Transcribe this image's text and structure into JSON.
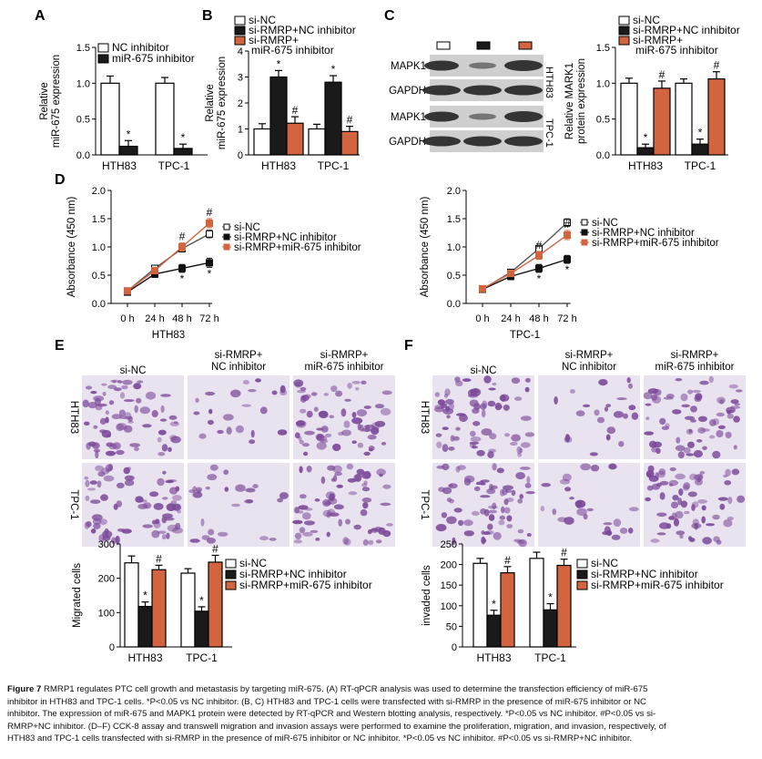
{
  "colors": {
    "white_bar": "#ffffff",
    "black_bar": "#1a1a1a",
    "orange_bar": "#d2653f",
    "line_black": "#111111",
    "line_gray": "#555555",
    "line_orange": "#d2653f",
    "blot_bg": "#cfcfcf",
    "blot_band": "#2b2b2b",
    "stain_bg": "#e9e3ef",
    "stain_cell": "#7c4a9a"
  },
  "panels": {
    "A": {
      "letter": "A",
      "ylabel1": "Relative",
      "ylabel2": "miR-675 expression",
      "yticks": [
        "0.0",
        "0.5",
        "1.0",
        "1.5"
      ],
      "legend": [
        "NC inhibitor",
        "miR-675 inhibitor"
      ],
      "xcats": [
        "HTH83",
        "TPC-1"
      ]
    },
    "B": {
      "letter": "B",
      "ylabel1": "Relative",
      "ylabel2": "miR-675 expression",
      "yticks": [
        "0",
        "1",
        "2",
        "3",
        "4"
      ],
      "legend": [
        "si-NC",
        "si-RMRP+NC inhibitor",
        "si-RMRP+",
        "miR-675 inhibitor"
      ],
      "xcats": [
        "HTH83",
        "TPC-1"
      ]
    },
    "C": {
      "letter": "C",
      "blot_labels": [
        "MAPK1",
        "GAPDH",
        "MAPK1",
        "GAPDH"
      ],
      "cell_labels": [
        "HTH83",
        "TPC-1"
      ],
      "ylabel1": "Relative MARK1",
      "ylabel2": "protein expression",
      "yticks": [
        "0.0",
        "0.5",
        "1.0",
        "1.5"
      ],
      "legend": [
        "si-NC",
        "si-RMRP+NC inhibitor",
        "si-RMRP+",
        "miR-675 inhibitor"
      ],
      "xcats": [
        "HTH83",
        "TPC-1"
      ]
    },
    "D": {
      "letter": "D",
      "ylabel": "Absorbance (450 nm)",
      "yticks": [
        "0.0",
        "0.5",
        "1.0",
        "1.5",
        "2.0"
      ],
      "xticks": [
        "0 h",
        "24 h",
        "48 h",
        "72 h"
      ],
      "xlabel_left": "HTH83",
      "xlabel_right": "TPC-1",
      "legend": [
        "si-NC",
        "si-RMRP+NC inhibitor",
        "si-RMRP+miR-675 inhibitor"
      ]
    },
    "E": {
      "letter": "E",
      "col_headers": [
        "si-NC",
        "si-RMRP+",
        "NC inhibitor",
        "si-RMRP+",
        "miR-675 inhibitor"
      ],
      "row_labels": [
        "HTH83",
        "TPC-1"
      ],
      "ylabel": "Migrated cells",
      "yticks": [
        "0",
        "100",
        "200",
        "300"
      ],
      "legend": [
        "si-NC",
        "si-RMRP+NC inhibitor",
        "si-RMRP+miR-675 inhibitor"
      ],
      "xcats": [
        "HTH83",
        "TPC-1"
      ]
    },
    "F": {
      "letter": "F",
      "col_headers": [
        "si-NC",
        "si-RMRP+",
        "NC inhibitor",
        "si-RMRP+",
        "miR-675 inhibitor"
      ],
      "row_labels": [
        "HTH83",
        "TPC-1"
      ],
      "ylabel": "invaded cells",
      "yticks": [
        "0",
        "50",
        "100",
        "150",
        "200",
        "250"
      ],
      "legend": [
        "si-NC",
        "si-RMRP+NC inhibitor",
        "si-RMRP+miR-675 inhibitor"
      ],
      "xcats": [
        "HTH83",
        "TPC-1"
      ]
    }
  },
  "chart_data": [
    {
      "panel": "A",
      "type": "bar",
      "categories": [
        "HTH83",
        "TPC-1"
      ],
      "ylabel": "Relative miR-675 expression",
      "ylim": [
        0,
        1.5
      ],
      "series": [
        {
          "name": "NC inhibitor",
          "values": [
            1.0,
            1.0
          ],
          "errors": [
            0.1,
            0.08
          ]
        },
        {
          "name": "miR-675 inhibitor",
          "values": [
            0.12,
            0.09
          ],
          "errors": [
            0.08,
            0.06
          ]
        }
      ],
      "annotations": [
        "*",
        "*"
      ]
    },
    {
      "panel": "B",
      "type": "bar",
      "categories": [
        "HTH83",
        "TPC-1"
      ],
      "ylabel": "Relative miR-675 expression",
      "ylim": [
        0,
        4
      ],
      "series": [
        {
          "name": "si-NC",
          "values": [
            1.0,
            1.0
          ],
          "errors": [
            0.2,
            0.18
          ]
        },
        {
          "name": "si-RMRP+NC inhibitor",
          "values": [
            3.0,
            2.8
          ],
          "errors": [
            0.25,
            0.25
          ]
        },
        {
          "name": "si-RMRP+ miR-675 inhibitor",
          "values": [
            1.22,
            0.9
          ],
          "errors": [
            0.25,
            0.2
          ]
        }
      ],
      "annotations": [
        "*",
        "#",
        "*",
        "#"
      ]
    },
    {
      "panel": "C",
      "type": "bar",
      "categories": [
        "HTH83",
        "TPC-1"
      ],
      "ylabel": "Relative MARK1 protein expression",
      "ylim": [
        0,
        1.5
      ],
      "series": [
        {
          "name": "si-NC",
          "values": [
            1.0,
            1.0
          ],
          "errors": [
            0.07,
            0.06
          ]
        },
        {
          "name": "si-RMRP+NC inhibitor",
          "values": [
            0.1,
            0.15
          ],
          "errors": [
            0.05,
            0.07
          ]
        },
        {
          "name": "si-RMRP+ miR-675 inhibitor",
          "values": [
            0.93,
            1.06
          ],
          "errors": [
            0.1,
            0.1
          ]
        }
      ],
      "annotations": [
        "*",
        "#",
        "*",
        "#"
      ]
    },
    {
      "panel": "D-HTH83",
      "type": "line",
      "x": [
        "0 h",
        "24 h",
        "48 h",
        "72 h"
      ],
      "ylabel": "Absorbance (450 nm)",
      "xlabel": "HTH83",
      "ylim": [
        0,
        2.0
      ],
      "series": [
        {
          "name": "si-NC",
          "values": [
            0.22,
            0.62,
            0.97,
            1.23
          ],
          "errors": [
            0.04,
            0.04,
            0.06,
            0.07
          ]
        },
        {
          "name": "si-RMRP+NC inhibitor",
          "values": [
            0.2,
            0.52,
            0.62,
            0.72
          ],
          "errors": [
            0.04,
            0.06,
            0.07,
            0.08
          ]
        },
        {
          "name": "si-RMRP+miR-675 inhibitor",
          "values": [
            0.22,
            0.58,
            1.0,
            1.42
          ],
          "errors": [
            0.04,
            0.05,
            0.07,
            0.08
          ]
        }
      ],
      "annotations": [
        "#",
        "*",
        "#",
        "*"
      ]
    },
    {
      "panel": "D-TPC-1",
      "type": "line",
      "x": [
        "0 h",
        "24 h",
        "48 h",
        "72 h"
      ],
      "ylabel": "Absorbance (450 nm)",
      "xlabel": "TPC-1",
      "ylim": [
        0,
        2.0
      ],
      "series": [
        {
          "name": "si-NC",
          "values": [
            0.25,
            0.55,
            0.97,
            1.43
          ],
          "errors": [
            0.04,
            0.05,
            0.06,
            0.07
          ]
        },
        {
          "name": "si-RMRP+NC inhibitor",
          "values": [
            0.25,
            0.48,
            0.62,
            0.78
          ],
          "errors": [
            0.04,
            0.06,
            0.07,
            0.07
          ]
        },
        {
          "name": "si-RMRP+miR-675 inhibitor",
          "values": [
            0.26,
            0.53,
            0.85,
            1.21
          ],
          "errors": [
            0.04,
            0.05,
            0.07,
            0.08
          ]
        }
      ],
      "annotations": [
        "#",
        "*",
        "#",
        "*"
      ]
    },
    {
      "panel": "E",
      "type": "bar",
      "categories": [
        "HTH83",
        "TPC-1"
      ],
      "ylabel": "Migrated cells",
      "ylim": [
        0,
        300
      ],
      "series": [
        {
          "name": "si-NC",
          "values": [
            245,
            215
          ],
          "errors": [
            20,
            13
          ]
        },
        {
          "name": "si-RMRP+NC inhibitor",
          "values": [
            118,
            104
          ],
          "errors": [
            13,
            13
          ]
        },
        {
          "name": "si-RMRP+miR-675 inhibitor",
          "values": [
            225,
            247
          ],
          "errors": [
            13,
            20
          ]
        }
      ],
      "annotations": [
        "*",
        "#",
        "*",
        "#"
      ]
    },
    {
      "panel": "F",
      "type": "bar",
      "categories": [
        "HTH83",
        "TPC-1"
      ],
      "ylabel": "invaded cells",
      "ylim": [
        0,
        250
      ],
      "series": [
        {
          "name": "si-NC",
          "values": [
            203,
            215
          ],
          "errors": [
            12,
            15
          ]
        },
        {
          "name": "si-RMRP+NC inhibitor",
          "values": [
            77,
            90
          ],
          "errors": [
            12,
            15
          ]
        },
        {
          "name": "si-RMRP+miR-675 inhibitor",
          "values": [
            180,
            198
          ],
          "errors": [
            15,
            15
          ]
        }
      ],
      "annotations": [
        "*",
        "#",
        "*",
        "#"
      ]
    }
  ],
  "caption": {
    "bold_head": "Figure 7",
    "line1_rest": " RMRP1 regulates PTC cell growth and metastasis by targeting miR-675. (A) RT-qPCR analysis was used to determine the transfection efficiency of miR-675",
    "line2": "inhibitor in HTH83 and TPC-1 cells. *P<0.05 vs NC inhibitor. (B, C) HTH83 and TPC-1 cells were transfected with si-RMRP in the presence of miR-675 inhibitor or NC",
    "line3": "inhibitor. The expression of miR-675 and MAPK1 protein were detected by RT-qPCR and Western blotting analysis, respectively. *P<0.05 vs NC inhibitor. #P<0.05 vs si-",
    "line4": "RMRP+NC inhibitor. (D–F) CCK-8 assay and transwell migration and invasion assays were performed to examine the proliferation, migration, and invasion, respectively, of",
    "line5": "HTH83 and TPC-1 cells transfected with si-RMRP in the presence of miR-675 inhibitor or NC inhibitor. *P<0.05 vs NC inhibitor. #P<0.05 vs si-RMRP+NC inhibitor."
  }
}
